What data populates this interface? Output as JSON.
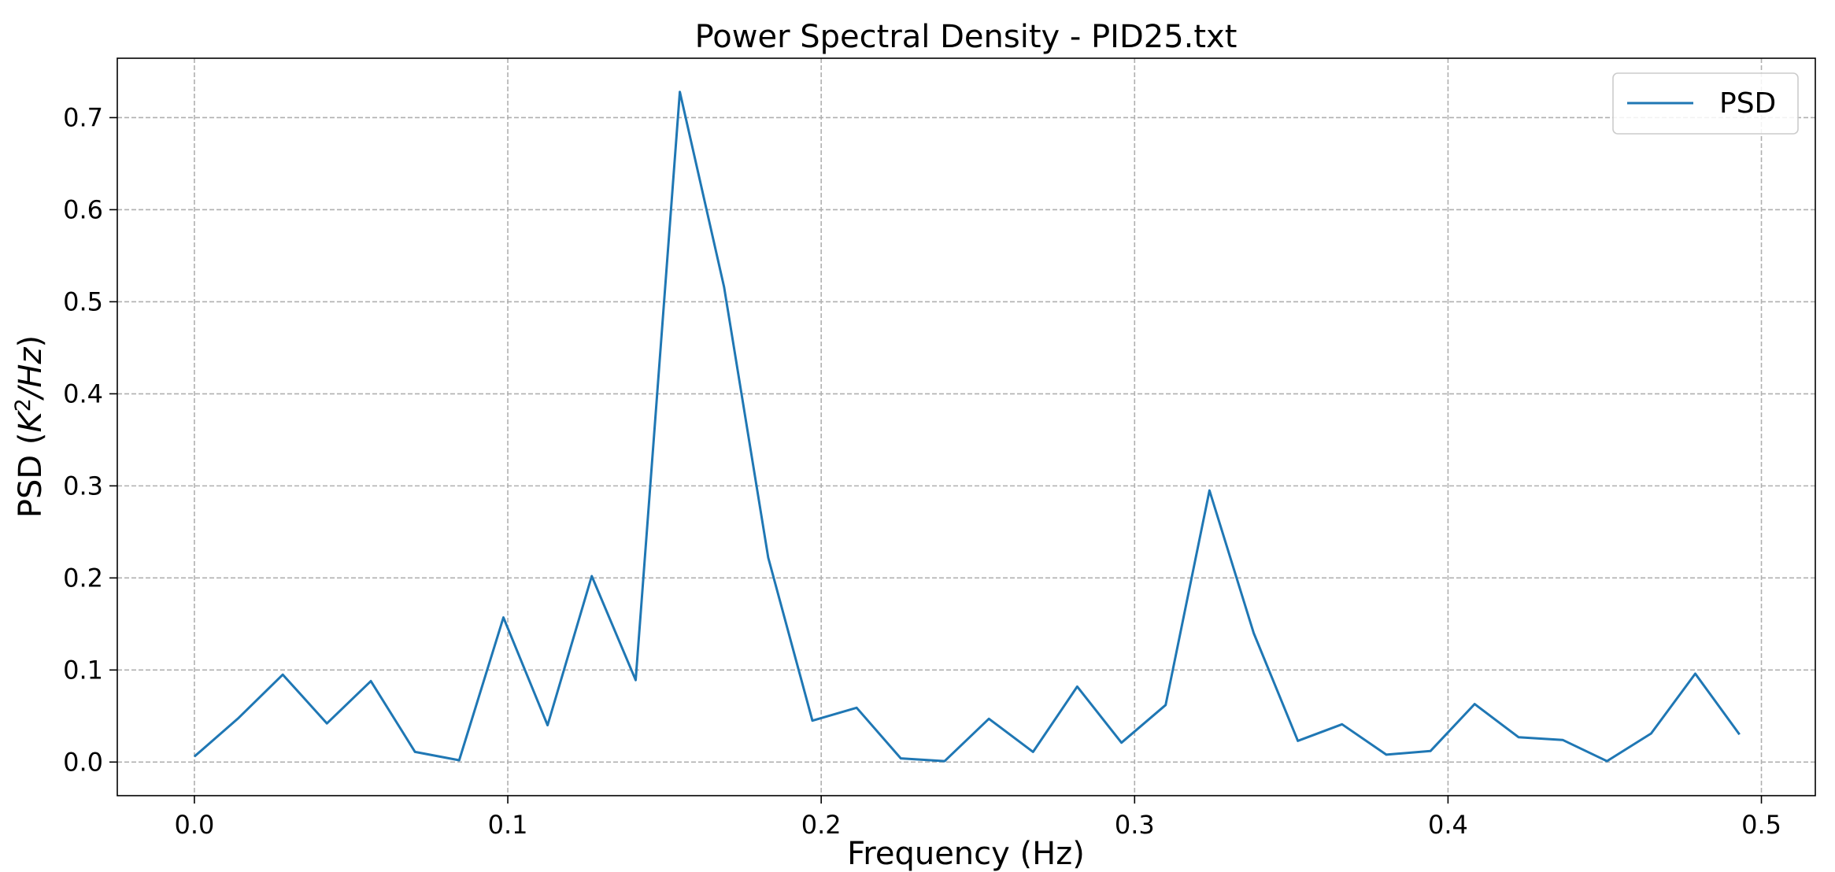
{
  "chart_data": {
    "type": "line",
    "title": "Power Spectral Density - PID25.txt",
    "xlabel": "Frequency (Hz)",
    "ylabel": {
      "prefix": "PSD (",
      "base": "K",
      "superscript": "2",
      "suffix": "/Hz",
      "close": ")"
    },
    "xlim": [
      -0.0246,
      0.5172
    ],
    "ylim": [
      -0.0365,
      0.7645
    ],
    "xticks": [
      "0.0",
      "0.1",
      "0.2",
      "0.3",
      "0.4",
      "0.5"
    ],
    "xtick_values": [
      0.0,
      0.1,
      0.2,
      0.3,
      0.4,
      0.5
    ],
    "yticks": [
      "0.0",
      "0.1",
      "0.2",
      "0.3",
      "0.4",
      "0.5",
      "0.6",
      "0.7"
    ],
    "ytick_values": [
      0.0,
      0.1,
      0.2,
      0.3,
      0.4,
      0.5,
      0.6,
      0.7
    ],
    "grid": true,
    "legend_position": "top-right",
    "series": [
      {
        "name": "PSD",
        "color": "#1f77b4",
        "x": [
          0.0,
          0.0141,
          0.0282,
          0.0423,
          0.0563,
          0.0704,
          0.0845,
          0.0986,
          0.1127,
          0.1268,
          0.1408,
          0.1549,
          0.169,
          0.1831,
          0.1972,
          0.2113,
          0.2254,
          0.2394,
          0.2535,
          0.2676,
          0.2817,
          0.2958,
          0.3099,
          0.3239,
          0.338,
          0.3521,
          0.3662,
          0.3803,
          0.3944,
          0.4085,
          0.4225,
          0.4366,
          0.4507,
          0.4648,
          0.4789,
          0.493
        ],
        "y": [
          0.006,
          0.048,
          0.095,
          0.042,
          0.088,
          0.011,
          0.002,
          0.157,
          0.04,
          0.202,
          0.089,
          0.728,
          0.516,
          0.222,
          0.045,
          0.059,
          0.004,
          0.001,
          0.047,
          0.011,
          0.082,
          0.021,
          0.062,
          0.295,
          0.14,
          0.023,
          0.041,
          0.008,
          0.012,
          0.063,
          0.027,
          0.024,
          0.001,
          0.031,
          0.096,
          0.03
        ]
      }
    ]
  }
}
